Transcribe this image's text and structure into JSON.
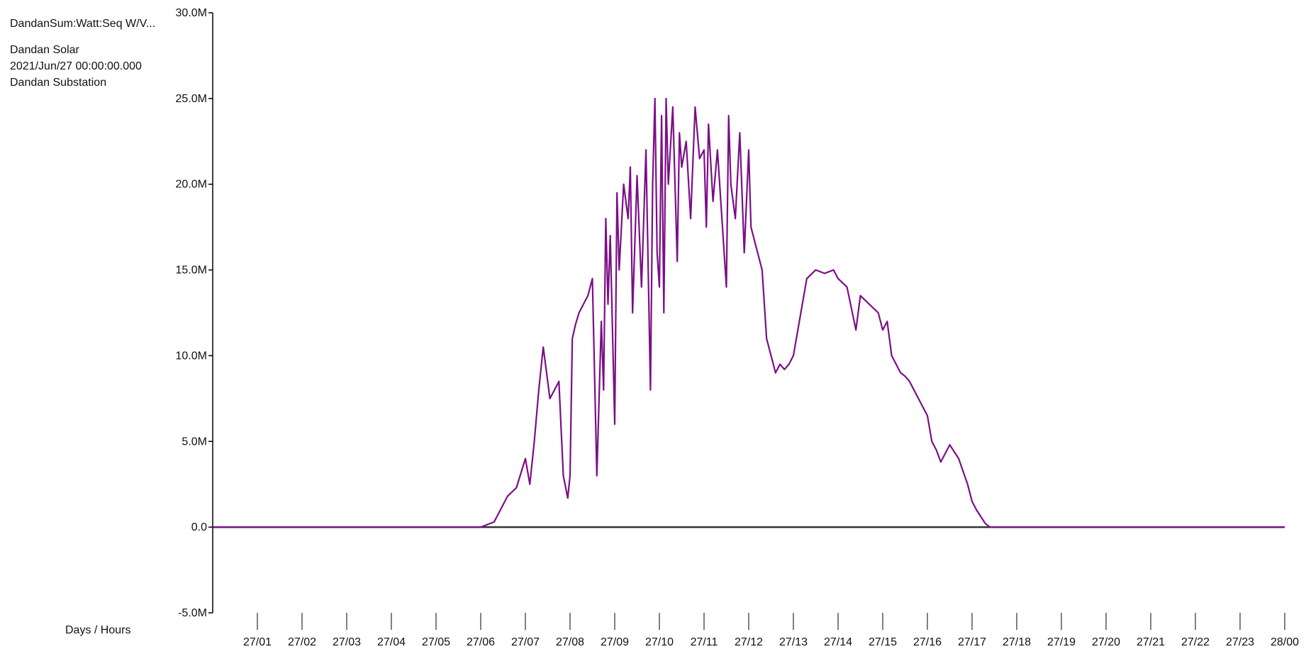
{
  "info_panel": {
    "series_tag": "DandanSum:Watt:Seq W/V...",
    "plant": "Dandan Solar",
    "timestamp": "2021/Jun/27 00:00:00.000",
    "substation": "Dandan Substation"
  },
  "colors": {
    "series": "#7b0f86",
    "zero_line": "#333333",
    "axis": "#000000"
  },
  "chart_data": {
    "type": "line",
    "title": "",
    "xlabel": "Days / Hours",
    "ylabel": "",
    "ylim": [
      -5.0,
      30.0
    ],
    "yticks": [
      -5.0,
      0.0,
      5.0,
      10.0,
      15.0,
      20.0,
      25.0,
      30.0
    ],
    "ytick_labels": [
      "-5.0M",
      "0.0",
      "5.0M",
      "10.0M",
      "15.0M",
      "20.0M",
      "25.0M",
      "30.0M"
    ],
    "xlim": [
      0,
      24
    ],
    "xtick_labels": [
      "27/01",
      "27/02",
      "27/03",
      "27/04",
      "27/05",
      "27/06",
      "27/07",
      "27/08",
      "27/09",
      "27/10",
      "27/11",
      "27/12",
      "27/13",
      "27/14",
      "27/15",
      "27/16",
      "27/17",
      "27/18",
      "27/19",
      "27/20",
      "27/21",
      "27/22",
      "27/23",
      "28/00"
    ],
    "grid": false,
    "unit_note": "values in M",
    "series": [
      {
        "x": [
          0.0,
          6.0,
          6.3,
          6.4,
          6.6,
          6.8,
          7.0,
          7.1,
          7.2,
          7.3,
          7.4,
          7.55,
          7.65,
          7.75,
          7.85,
          7.95,
          8.0,
          8.05,
          8.12,
          8.2,
          8.3,
          8.4,
          8.5,
          8.6,
          8.7,
          8.75,
          8.8,
          8.85,
          8.9,
          9.0,
          9.05,
          9.1,
          9.2,
          9.3,
          9.35,
          9.4,
          9.5,
          9.6,
          9.7,
          9.8,
          9.85,
          9.9,
          9.95,
          10.0,
          10.05,
          10.1,
          10.15,
          10.2,
          10.3,
          10.4,
          10.45,
          10.5,
          10.6,
          10.7,
          10.8,
          10.9,
          11.0,
          11.05,
          11.1,
          11.2,
          11.3,
          11.4,
          11.5,
          11.55,
          11.6,
          11.7,
          11.8,
          11.9,
          12.0,
          12.05,
          12.1,
          12.2,
          12.3,
          12.4,
          12.5,
          12.55,
          12.6,
          12.7,
          12.8,
          12.9,
          13.0,
          13.1,
          13.2,
          13.3,
          13.5,
          13.7,
          13.9,
          14.0,
          14.2,
          14.4,
          14.5,
          14.7,
          14.9,
          15.0,
          15.1,
          15.2,
          15.3,
          15.4,
          15.5,
          15.6,
          15.8,
          16.0,
          16.1,
          16.2,
          16.3,
          16.5,
          16.7,
          16.9,
          17.0,
          17.1,
          17.2,
          17.3,
          17.4,
          17.5,
          17.6,
          17.8,
          18.0,
          18.2,
          18.4,
          18.6,
          18.7,
          24.0
        ],
        "y": [
          0.0,
          0.0,
          0.3,
          0.8,
          1.8,
          2.3,
          4.0,
          2.5,
          5.0,
          8.0,
          10.5,
          7.5,
          8.0,
          8.5,
          3.0,
          1.7,
          3.0,
          11.0,
          11.8,
          12.5,
          13.0,
          13.5,
          14.5,
          3.0,
          12.0,
          8.0,
          18.0,
          13.0,
          17.0,
          6.0,
          19.5,
          15.0,
          20.0,
          18.0,
          21.0,
          12.5,
          20.5,
          14.0,
          22.0,
          8.0,
          20.0,
          25.0,
          16.0,
          14.0,
          24.0,
          12.5,
          25.0,
          20.0,
          24.5,
          15.5,
          23.0,
          21.0,
          22.5,
          18.0,
          24.5,
          21.5,
          22.0,
          17.5,
          23.5,
          19.0,
          22.0,
          18.0,
          14.0,
          24.0,
          20.0,
          18.0,
          23.0,
          16.0,
          22.0,
          17.5,
          17.0,
          16.0,
          15.0,
          11.0,
          10.0,
          9.5,
          9.0,
          9.5,
          9.2,
          9.5,
          10.0,
          11.5,
          13.0,
          14.5,
          15.0,
          14.8,
          15.0,
          14.5,
          14.0,
          11.5,
          13.5,
          13.0,
          12.5,
          11.5,
          12.0,
          10.0,
          9.5,
          9.0,
          8.8,
          8.5,
          7.5,
          6.5,
          5.0,
          4.5,
          3.8,
          4.8,
          4.0,
          2.5,
          1.5,
          1.0,
          0.6,
          0.2,
          0.0,
          0.0,
          0.0,
          0.0,
          0.0,
          0.0,
          0.0,
          0.0,
          0.0,
          0.0
        ]
      }
    ]
  }
}
